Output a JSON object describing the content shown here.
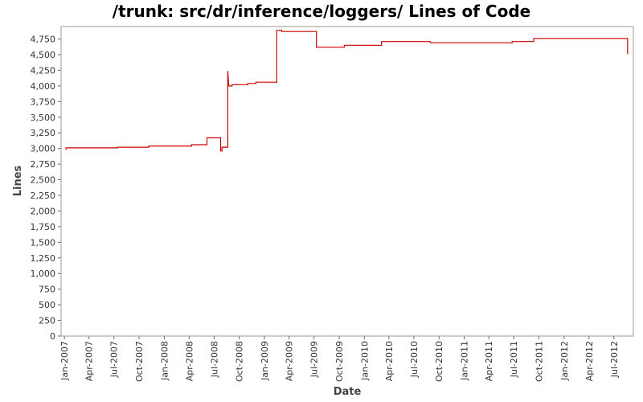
{
  "chart_data": {
    "type": "line",
    "title": "/trunk: src/dr/inference/loggers/ Lines of Code",
    "xlabel": "Date",
    "ylabel": "Lines",
    "ylim": [
      0,
      4950
    ],
    "xlim": [
      "2006-12-20",
      "2012-09-10"
    ],
    "y_ticks": [
      0,
      250,
      500,
      750,
      1000,
      1250,
      1500,
      1750,
      2000,
      2250,
      2500,
      2750,
      3000,
      3250,
      3500,
      3750,
      4000,
      4250,
      4500,
      4750
    ],
    "y_tick_labels": [
      "0",
      "250",
      "500",
      "750",
      "1,000",
      "1,250",
      "1,500",
      "1,750",
      "2,000",
      "2,250",
      "2,500",
      "2,750",
      "3,000",
      "3,250",
      "3,500",
      "3,750",
      "4,000",
      "4,250",
      "4,500",
      "4,750"
    ],
    "x_ticks": [
      "2007-01-01",
      "2007-04-01",
      "2007-07-01",
      "2007-10-01",
      "2008-01-01",
      "2008-04-01",
      "2008-07-01",
      "2008-10-01",
      "2009-01-01",
      "2009-04-01",
      "2009-07-01",
      "2009-10-01",
      "2010-01-01",
      "2010-04-01",
      "2010-07-01",
      "2010-10-01",
      "2011-01-01",
      "2011-04-01",
      "2011-07-01",
      "2011-10-01",
      "2012-01-01",
      "2012-04-01",
      "2012-07-01"
    ],
    "x_tick_labels": [
      "Jan-2007",
      "Apr-2007",
      "Jul-2007",
      "Oct-2007",
      "Jan-2008",
      "Apr-2008",
      "Jul-2008",
      "Oct-2008",
      "Jan-2009",
      "Apr-2009",
      "Jul-2009",
      "Oct-2009",
      "Jan-2010",
      "Apr-2010",
      "Jul-2010",
      "Oct-2010",
      "Jan-2011",
      "Apr-2011",
      "Jul-2011",
      "Oct-2011",
      "Jan-2012",
      "Apr-2012",
      "Jul-2012"
    ],
    "grid": false,
    "series": [
      {
        "color": "#cc0000",
        "points": [
          [
            "2007-01-07",
            2980
          ],
          [
            "2007-01-07",
            3010
          ],
          [
            "2007-07-15",
            3010
          ],
          [
            "2007-07-15",
            3020
          ],
          [
            "2007-11-05",
            3020
          ],
          [
            "2007-11-05",
            3040
          ],
          [
            "2008-04-10",
            3040
          ],
          [
            "2008-04-10",
            3060
          ],
          [
            "2008-06-05",
            3060
          ],
          [
            "2008-06-05",
            3170
          ],
          [
            "2008-07-25",
            3170
          ],
          [
            "2008-07-25",
            2960
          ],
          [
            "2008-07-30",
            2960
          ],
          [
            "2008-07-30",
            3020
          ],
          [
            "2008-08-20",
            3020
          ],
          [
            "2008-08-20",
            4240
          ],
          [
            "2008-08-24",
            4000
          ],
          [
            "2008-09-05",
            4000
          ],
          [
            "2008-09-05",
            4020
          ],
          [
            "2008-11-01",
            4020
          ],
          [
            "2008-11-01",
            4040
          ],
          [
            "2008-12-01",
            4040
          ],
          [
            "2008-12-01",
            4060
          ],
          [
            "2009-02-15",
            4060
          ],
          [
            "2009-02-15",
            4890
          ],
          [
            "2009-03-05",
            4890
          ],
          [
            "2009-03-05",
            4870
          ],
          [
            "2009-07-10",
            4870
          ],
          [
            "2009-07-10",
            4620
          ],
          [
            "2009-10-20",
            4620
          ],
          [
            "2009-10-20",
            4650
          ],
          [
            "2010-03-05",
            4650
          ],
          [
            "2010-03-05",
            4710
          ],
          [
            "2010-08-30",
            4710
          ],
          [
            "2010-08-30",
            4690
          ],
          [
            "2011-06-25",
            4690
          ],
          [
            "2011-06-25",
            4710
          ],
          [
            "2011-09-12",
            4710
          ],
          [
            "2011-09-12",
            4760
          ],
          [
            "2012-08-20",
            4760
          ],
          [
            "2012-08-20",
            4510
          ]
        ]
      }
    ]
  }
}
